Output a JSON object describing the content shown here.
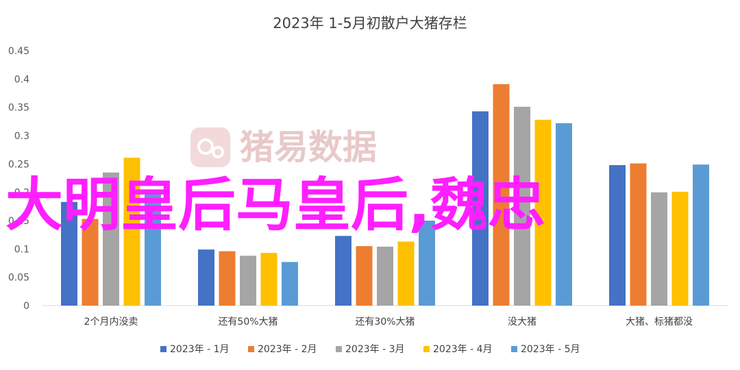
{
  "chart_data": {
    "type": "bar",
    "title": "2023年 1-5月初散户大猪存栏",
    "categories": [
      "2个月内没卖",
      "还有50%大猪",
      "还有30%大猪",
      "没大猪",
      "大猪、标猪都没"
    ],
    "series": [
      {
        "name": "2023年 - 1月",
        "color": "#4472c4",
        "values": [
          0.183,
          0.099,
          0.123,
          0.343,
          0.248
        ]
      },
      {
        "name": "2023年 - 2月",
        "color": "#ed7d31",
        "values": [
          0.153,
          0.096,
          0.105,
          0.391,
          0.251
        ]
      },
      {
        "name": "2023年 - 3月",
        "color": "#a5a5a5",
        "values": [
          0.235,
          0.088,
          0.104,
          0.351,
          0.2
        ]
      },
      {
        "name": "2023年 - 4月",
        "color": "#ffc000",
        "values": [
          0.261,
          0.093,
          0.113,
          0.328,
          0.201
        ]
      },
      {
        "name": "2023年 - 5月",
        "color": "#5b9bd5",
        "values": [
          0.205,
          0.077,
          0.15,
          0.322,
          0.249
        ]
      }
    ],
    "ylim": [
      0,
      0.45
    ],
    "yticks": [
      "0",
      "0.05",
      "0.1",
      "0.15",
      "0.2",
      "0.25",
      "0.3",
      "0.35",
      "0.4",
      "0.45"
    ],
    "xlabel": "",
    "ylabel": "",
    "grid": false,
    "legend_position": "bottom"
  },
  "watermark": {
    "text": "猪易数据"
  },
  "overlay_text": "大明皇后马皇后,魏忠"
}
